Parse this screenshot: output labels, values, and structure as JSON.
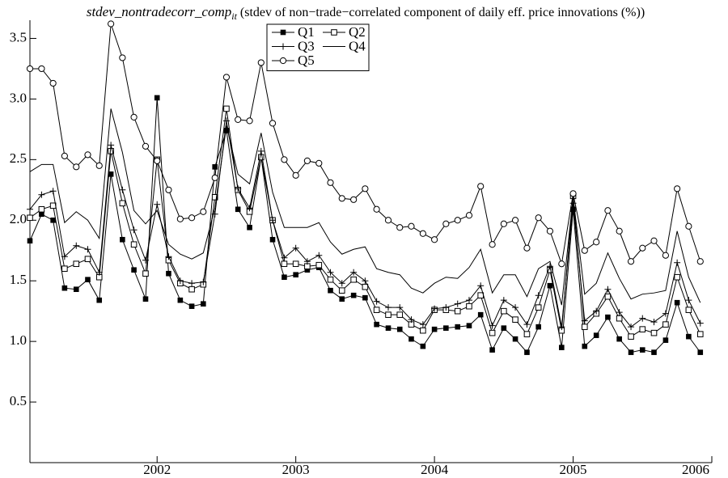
{
  "chart_data": {
    "type": "line",
    "title": "stdev_nontradecorr_comp",
    "title_subscript": "it",
    "subtitle": "(stdev of non−trade−correlated component of daily eff. price innovations (%))",
    "x": [
      2001.083,
      2001.167,
      2001.25,
      2001.333,
      2001.417,
      2001.5,
      2001.583,
      2001.667,
      2001.75,
      2001.833,
      2001.917,
      2002,
      2002.083,
      2002.167,
      2002.25,
      2002.333,
      2002.417,
      2002.5,
      2002.583,
      2002.667,
      2002.75,
      2002.833,
      2002.917,
      2003,
      2003.083,
      2003.167,
      2003.25,
      2003.333,
      2003.417,
      2003.5,
      2003.583,
      2003.667,
      2003.75,
      2003.833,
      2003.917,
      2004,
      2004.083,
      2004.167,
      2004.25,
      2004.333,
      2004.417,
      2004.5,
      2004.583,
      2004.667,
      2004.75,
      2004.833,
      2004.917,
      2005,
      2005.083,
      2005.167,
      2005.25,
      2005.333,
      2005.417,
      2005.5,
      2005.583,
      2005.667,
      2005.75,
      2005.833,
      2005.917
    ],
    "series": [
      {
        "name": "Q1",
        "color": "#000000",
        "marker": "filled-square",
        "values": [
          1.83,
          2.05,
          2.0,
          1.44,
          1.43,
          1.51,
          1.34,
          2.38,
          1.84,
          1.59,
          1.35,
          3.01,
          1.56,
          1.34,
          1.29,
          1.31,
          2.44,
          2.74,
          2.09,
          1.94,
          2.52,
          1.84,
          1.53,
          1.55,
          1.59,
          1.61,
          1.42,
          1.35,
          1.38,
          1.36,
          1.14,
          1.11,
          1.1,
          1.02,
          0.96,
          1.1,
          1.11,
          1.12,
          1.13,
          1.22,
          0.93,
          1.11,
          1.02,
          0.91,
          1.12,
          1.46,
          0.95,
          2.09,
          0.96,
          1.05,
          1.2,
          1.02,
          0.91,
          0.93,
          0.91,
          1.01,
          1.32,
          1.04,
          0.91
        ]
      },
      {
        "name": "Q2",
        "color": "#000000",
        "marker": "open-square",
        "values": [
          2.02,
          2.09,
          2.12,
          1.6,
          1.64,
          1.68,
          1.53,
          2.57,
          2.14,
          1.8,
          1.56,
          2.5,
          1.67,
          1.48,
          1.43,
          1.47,
          2.19,
          2.92,
          2.25,
          2.07,
          2.52,
          2.0,
          1.64,
          1.64,
          1.62,
          1.63,
          1.51,
          1.42,
          1.51,
          1.45,
          1.26,
          1.22,
          1.22,
          1.14,
          1.09,
          1.26,
          1.26,
          1.25,
          1.29,
          1.38,
          1.07,
          1.25,
          1.18,
          1.06,
          1.28,
          1.59,
          1.09,
          2.2,
          1.12,
          1.23,
          1.37,
          1.19,
          1.04,
          1.1,
          1.07,
          1.14,
          1.53,
          1.26,
          1.06
        ]
      },
      {
        "name": "Q3",
        "color": "#000000",
        "marker": "plus",
        "values": [
          2.09,
          2.21,
          2.24,
          1.7,
          1.79,
          1.76,
          1.57,
          2.62,
          2.25,
          1.92,
          1.67,
          2.13,
          1.7,
          1.5,
          1.48,
          1.49,
          2.05,
          2.82,
          2.26,
          2.1,
          2.57,
          2.0,
          1.69,
          1.77,
          1.66,
          1.71,
          1.57,
          1.48,
          1.57,
          1.5,
          1.33,
          1.28,
          1.28,
          1.18,
          1.14,
          1.27,
          1.28,
          1.31,
          1.34,
          1.46,
          1.13,
          1.34,
          1.28,
          1.14,
          1.38,
          1.62,
          1.12,
          2.14,
          1.17,
          1.25,
          1.43,
          1.24,
          1.12,
          1.19,
          1.16,
          1.23,
          1.65,
          1.34,
          1.15
        ]
      },
      {
        "name": "Q4",
        "color": "#000000",
        "marker": "none",
        "values": [
          2.4,
          2.46,
          2.46,
          1.98,
          2.07,
          2.0,
          1.85,
          2.92,
          2.56,
          2.08,
          1.97,
          2.08,
          1.8,
          1.72,
          1.68,
          1.73,
          2.1,
          2.78,
          2.38,
          2.3,
          2.72,
          2.23,
          1.94,
          1.94,
          1.94,
          1.98,
          1.82,
          1.72,
          1.76,
          1.78,
          1.6,
          1.57,
          1.55,
          1.44,
          1.4,
          1.48,
          1.53,
          1.52,
          1.61,
          1.76,
          1.4,
          1.55,
          1.55,
          1.37,
          1.6,
          1.66,
          1.3,
          2.19,
          1.39,
          1.48,
          1.73,
          1.52,
          1.35,
          1.39,
          1.4,
          1.42,
          1.91,
          1.53,
          1.32
        ]
      },
      {
        "name": "Q5",
        "color": "#000000",
        "marker": "open-circle",
        "values": [
          3.25,
          3.25,
          3.13,
          2.53,
          2.44,
          2.54,
          2.45,
          3.62,
          3.34,
          2.85,
          2.61,
          2.49,
          2.25,
          2.01,
          2.02,
          2.07,
          2.35,
          3.18,
          2.83,
          2.82,
          3.3,
          2.8,
          2.5,
          2.37,
          2.49,
          2.47,
          2.31,
          2.18,
          2.17,
          2.26,
          2.09,
          2.0,
          1.94,
          1.95,
          1.89,
          1.84,
          1.97,
          2.0,
          2.04,
          2.28,
          1.8,
          1.97,
          2.0,
          1.77,
          2.02,
          1.91,
          1.64,
          2.22,
          1.75,
          1.82,
          2.08,
          1.91,
          1.66,
          1.77,
          1.83,
          1.71,
          2.26,
          1.95,
          1.66
        ]
      }
    ],
    "xlim": [
      2001.083,
      2006
    ],
    "xticks": [
      2002,
      2003,
      2004,
      2005,
      2006
    ],
    "ylim": [
      0,
      3.65
    ],
    "yticks": [
      0.5,
      {
        "value": 1,
        "label": "1.0"
      },
      1.5,
      {
        "value": 2,
        "label": "2.0"
      },
      2.5,
      {
        "value": 3,
        "label": "3.0"
      },
      3.5
    ],
    "legend": "top",
    "grid": false
  }
}
